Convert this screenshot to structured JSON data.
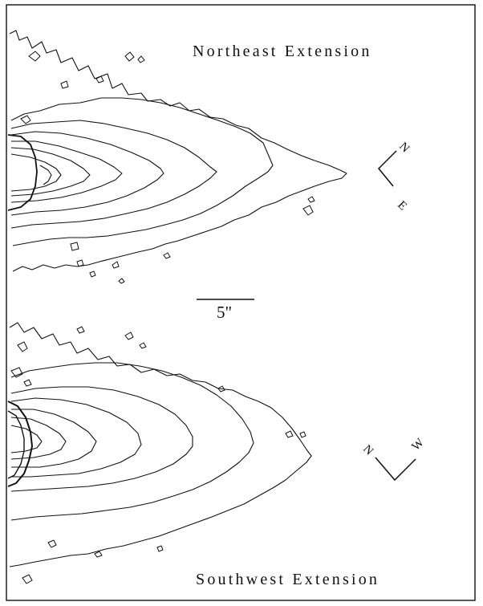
{
  "panels": [
    {
      "title": "Northeast Extension",
      "compass": {
        "up": "N",
        "side": "E"
      }
    },
    {
      "title": "Southwest Extension",
      "compass": {
        "up": "N",
        "side": "W"
      }
    }
  ],
  "scale_bar": {
    "label": "5\""
  }
}
